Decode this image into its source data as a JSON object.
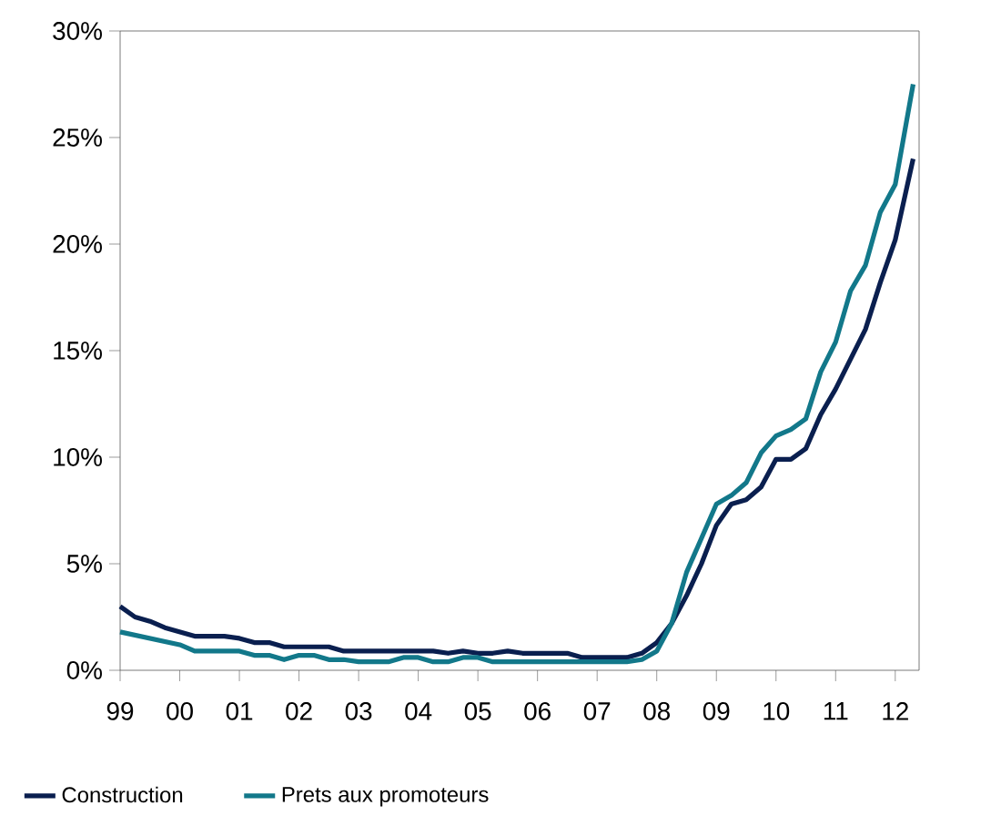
{
  "chart_data": {
    "type": "line",
    "xlim": [
      1999,
      2012.4
    ],
    "ylim": [
      0,
      30
    ],
    "xticks": [
      {
        "value": 1999,
        "label": "99"
      },
      {
        "value": 2000,
        "label": "00"
      },
      {
        "value": 2001,
        "label": "01"
      },
      {
        "value": 2002,
        "label": "02"
      },
      {
        "value": 2003,
        "label": "03"
      },
      {
        "value": 2004,
        "label": "04"
      },
      {
        "value": 2005,
        "label": "05"
      },
      {
        "value": 2006,
        "label": "06"
      },
      {
        "value": 2007,
        "label": "07"
      },
      {
        "value": 2008,
        "label": "08"
      },
      {
        "value": 2009,
        "label": "09"
      },
      {
        "value": 2010,
        "label": "10"
      },
      {
        "value": 2011,
        "label": "11"
      },
      {
        "value": 2012,
        "label": "12"
      }
    ],
    "yticks": [
      {
        "value": 0,
        "label": "0%"
      },
      {
        "value": 5,
        "label": "5%"
      },
      {
        "value": 10,
        "label": "10%"
      },
      {
        "value": 15,
        "label": "15%"
      },
      {
        "value": 20,
        "label": "20%"
      },
      {
        "value": 25,
        "label": "25%"
      },
      {
        "value": 30,
        "label": "30%"
      }
    ],
    "grid": false,
    "legend": "bottom",
    "marker": "none",
    "line_style": "solid",
    "series": [
      {
        "name": "Construction",
        "color": "#0a1f4f",
        "x": [
          1999,
          1999.25,
          1999.5,
          1999.75,
          2000,
          2000.25,
          2000.75,
          2001,
          2001.25,
          2001.5,
          2001.75,
          2002,
          2002.5,
          2002.75,
          2003,
          2004.25,
          2004.5,
          2004.75,
          2005,
          2005.25,
          2005.5,
          2005.75,
          2006,
          2006.5,
          2006.75,
          2007.5,
          2007.75,
          2008,
          2008.25,
          2008.5,
          2008.75,
          2009,
          2009.25,
          2009.5,
          2009.75,
          2010,
          2010.25,
          2010.5,
          2010.75,
          2011,
          2011.25,
          2011.5,
          2011.75,
          2012,
          2012.3
        ],
        "values": [
          3.0,
          2.5,
          2.3,
          2.0,
          1.8,
          1.6,
          1.6,
          1.5,
          1.3,
          1.3,
          1.1,
          1.1,
          1.1,
          0.9,
          0.9,
          0.9,
          0.8,
          0.9,
          0.8,
          0.8,
          0.9,
          0.8,
          0.8,
          0.8,
          0.6,
          0.6,
          0.8,
          1.3,
          2.2,
          3.5,
          5.0,
          6.8,
          7.8,
          8.0,
          8.6,
          9.9,
          9.9,
          10.4,
          12.0,
          13.2,
          14.6,
          16.0,
          18.2,
          20.2,
          24.0
        ]
      },
      {
        "name": "Prets aux promoteurs",
        "color": "#12788a",
        "x": [
          1999,
          2000,
          2000.25,
          2001,
          2001.25,
          2001.5,
          2001.75,
          2002,
          2002.25,
          2002.5,
          2002.75,
          2003,
          2003.5,
          2003.75,
          2004,
          2004.25,
          2004.5,
          2004.75,
          2005,
          2005.25,
          2007.5,
          2007.75,
          2008,
          2008.25,
          2008.5,
          2008.75,
          2009,
          2009.25,
          2009.5,
          2009.75,
          2010,
          2010.25,
          2010.5,
          2010.75,
          2011,
          2011.25,
          2011.5,
          2011.75,
          2012,
          2012.3
        ],
        "values": [
          1.8,
          1.2,
          0.9,
          0.9,
          0.7,
          0.7,
          0.5,
          0.7,
          0.7,
          0.5,
          0.5,
          0.4,
          0.4,
          0.6,
          0.6,
          0.4,
          0.4,
          0.6,
          0.6,
          0.4,
          0.4,
          0.5,
          0.9,
          2.2,
          4.6,
          6.2,
          7.8,
          8.2,
          8.8,
          10.2,
          11.0,
          11.3,
          11.8,
          14.0,
          15.4,
          17.8,
          19.0,
          21.5,
          22.8,
          27.5
        ]
      }
    ]
  }
}
